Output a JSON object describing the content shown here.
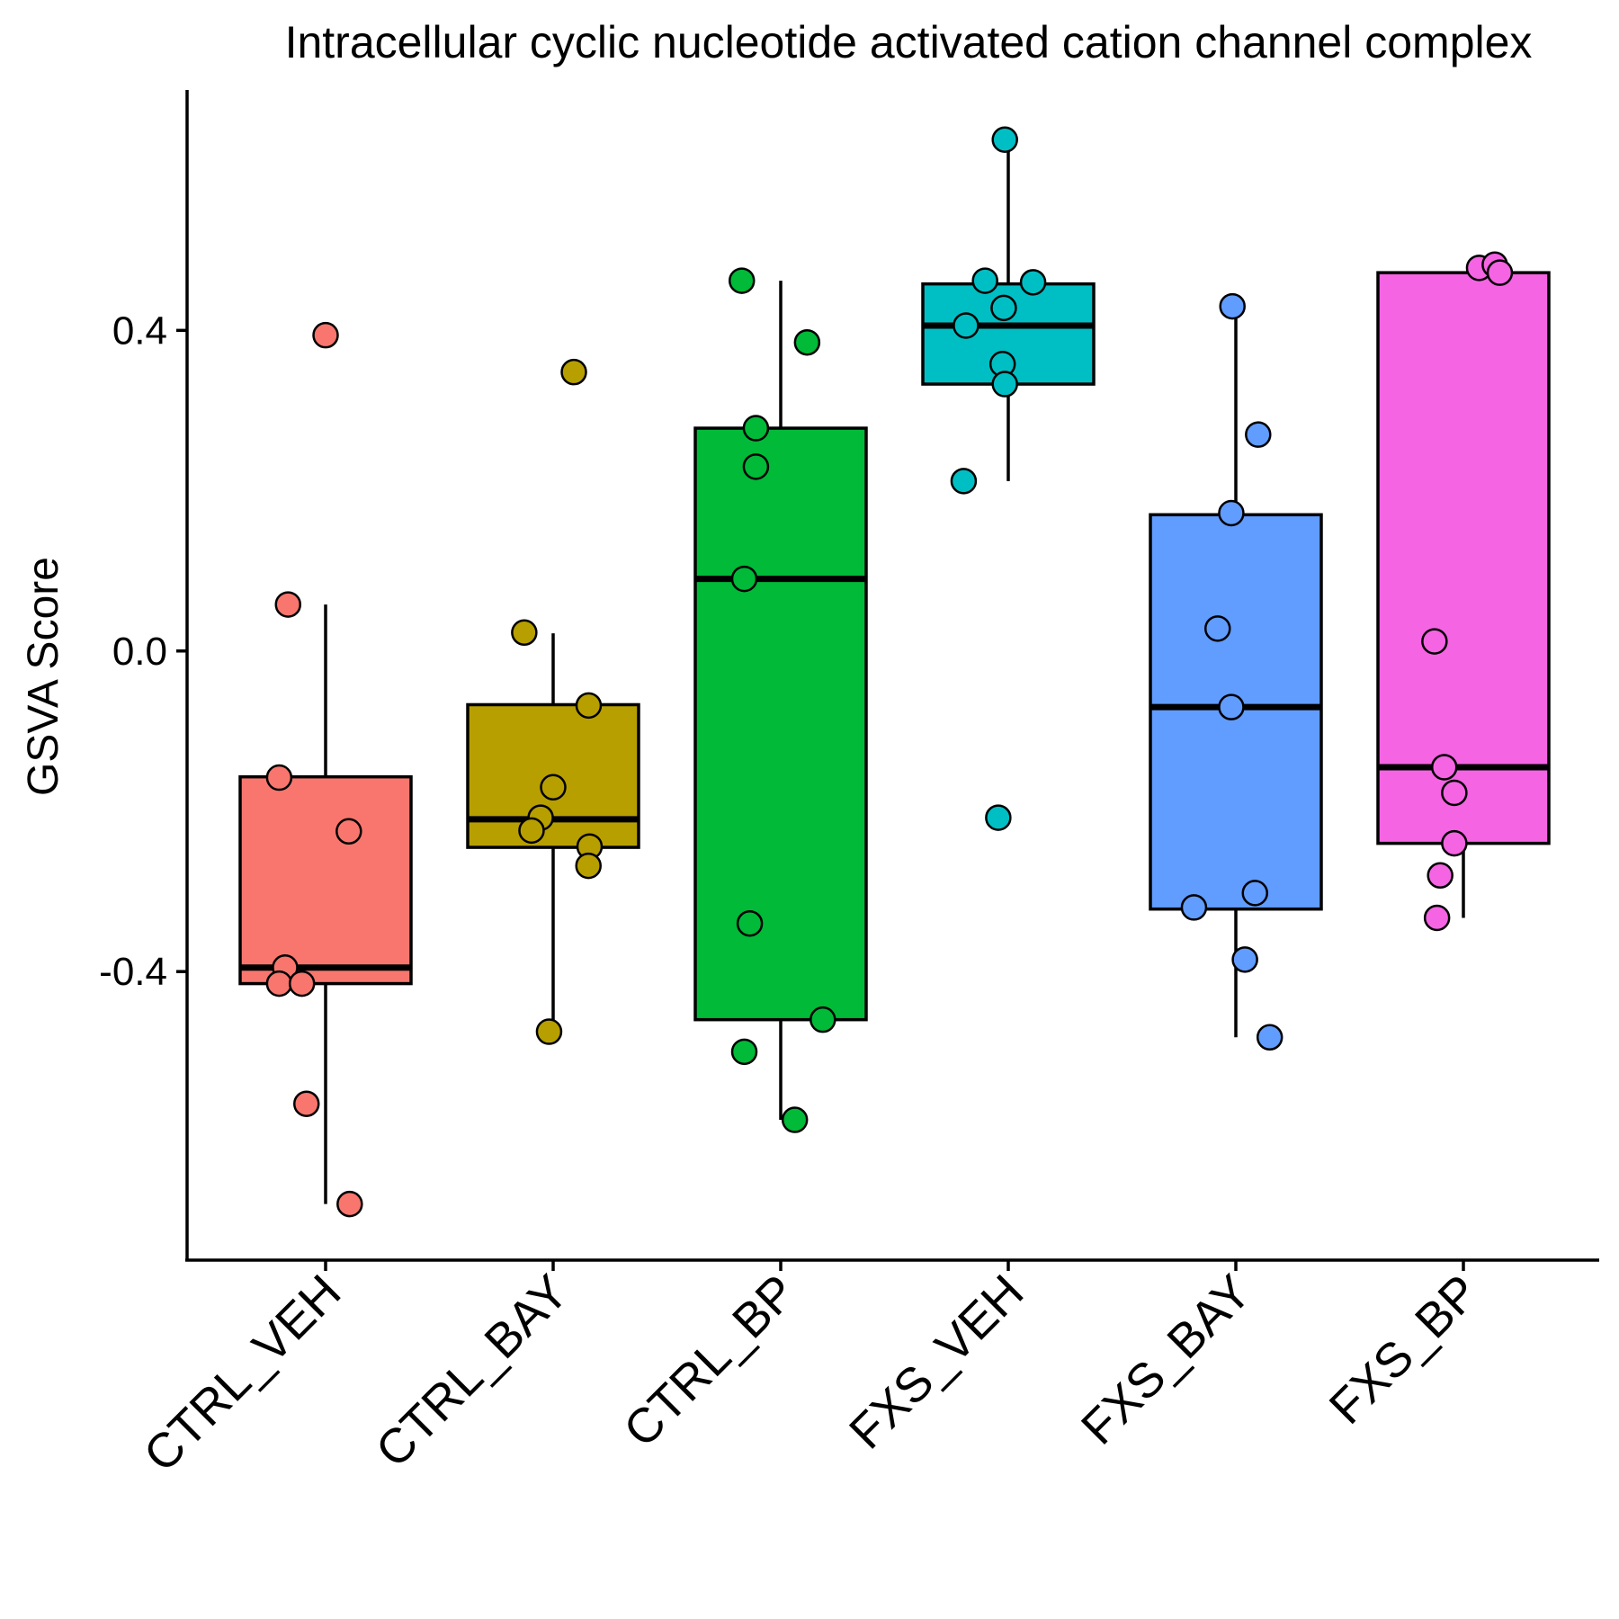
{
  "chart_data": {
    "type": "boxplot",
    "title": "Intracellular cyclic nucleotide activated cation channel complex",
    "xlabel": "",
    "ylabel": "GSVA Score",
    "ylim": [
      -0.76,
      0.7
    ],
    "y_ticks": [
      0.4,
      0.0,
      -0.4
    ],
    "y_tick_labels": [
      "0.4",
      "0.0",
      "-0.4"
    ],
    "grid": false,
    "legend": "none",
    "categories": [
      "CTRL_VEH",
      "CTRL_BAY",
      "CTRL_BP",
      "FXS_VEH",
      "FXS_BAY",
      "FXS_BP"
    ],
    "series": [
      {
        "category": "CTRL_VEH",
        "color": "#F8766D",
        "whisker_low": -0.69,
        "q1": -0.415,
        "median": -0.395,
        "q3": -0.157,
        "whisker_high": 0.058,
        "points": [
          {
            "dx": 0.0,
            "y": 0.394
          },
          {
            "dx": -0.165,
            "y": 0.058
          },
          {
            "dx": -0.204,
            "y": -0.158
          },
          {
            "dx": 0.102,
            "y": -0.225
          },
          {
            "dx": -0.178,
            "y": -0.395
          },
          {
            "dx": -0.204,
            "y": -0.415
          },
          {
            "dx": -0.104,
            "y": -0.415
          },
          {
            "dx": -0.084,
            "y": -0.565
          },
          {
            "dx": 0.106,
            "y": -0.69
          }
        ]
      },
      {
        "category": "CTRL_BAY",
        "color": "#B79F00",
        "whisker_low": -0.472,
        "q1": -0.245,
        "median": -0.21,
        "q3": -0.067,
        "whisker_high": 0.022,
        "points": [
          {
            "dx": 0.091,
            "y": 0.348
          },
          {
            "dx": -0.127,
            "y": 0.023
          },
          {
            "dx": 0.156,
            "y": -0.068
          },
          {
            "dx": 0.0,
            "y": -0.17
          },
          {
            "dx": -0.055,
            "y": -0.208
          },
          {
            "dx": -0.095,
            "y": -0.224
          },
          {
            "dx": 0.16,
            "y": -0.244
          },
          {
            "dx": 0.155,
            "y": -0.268
          },
          {
            "dx": -0.018,
            "y": -0.475
          }
        ]
      },
      {
        "category": "CTRL_BP",
        "color": "#00BA38",
        "whisker_low": -0.585,
        "q1": -0.46,
        "median": 0.09,
        "q3": 0.278,
        "whisker_high": 0.462,
        "points": [
          {
            "dx": -0.171,
            "y": 0.462
          },
          {
            "dx": 0.116,
            "y": 0.385
          },
          {
            "dx": -0.109,
            "y": 0.278
          },
          {
            "dx": -0.109,
            "y": 0.23
          },
          {
            "dx": -0.16,
            "y": 0.09
          },
          {
            "dx": -0.136,
            "y": -0.34
          },
          {
            "dx": 0.185,
            "y": -0.46
          },
          {
            "dx": -0.16,
            "y": -0.5
          },
          {
            "dx": 0.062,
            "y": -0.585
          }
        ]
      },
      {
        "category": "FXS_VEH",
        "color": "#00BFC4",
        "whisker_low": 0.212,
        "q1": 0.333,
        "median": 0.406,
        "q3": 0.458,
        "whisker_high": 0.638,
        "points": [
          {
            "dx": -0.015,
            "y": 0.638
          },
          {
            "dx": -0.102,
            "y": 0.462
          },
          {
            "dx": 0.109,
            "y": 0.46
          },
          {
            "dx": -0.02,
            "y": 0.428
          },
          {
            "dx": -0.186,
            "y": 0.406
          },
          {
            "dx": -0.025,
            "y": 0.358
          },
          {
            "dx": -0.015,
            "y": 0.333
          },
          {
            "dx": -0.196,
            "y": 0.212
          },
          {
            "dx": -0.044,
            "y": -0.208
          }
        ]
      },
      {
        "category": "FXS_BAY",
        "color": "#619CFF",
        "whisker_low": -0.482,
        "q1": -0.322,
        "median": -0.07,
        "q3": 0.17,
        "whisker_high": 0.43,
        "points": [
          {
            "dx": -0.015,
            "y": 0.43
          },
          {
            "dx": 0.098,
            "y": 0.27
          },
          {
            "dx": -0.02,
            "y": 0.172
          },
          {
            "dx": -0.08,
            "y": 0.028
          },
          {
            "dx": -0.02,
            "y": -0.07
          },
          {
            "dx": 0.084,
            "y": -0.302
          },
          {
            "dx": -0.184,
            "y": -0.32
          },
          {
            "dx": 0.04,
            "y": -0.385
          },
          {
            "dx": 0.149,
            "y": -0.482
          }
        ]
      },
      {
        "category": "FXS_BP",
        "color": "#F564E3",
        "whisker_low": -0.333,
        "q1": -0.24,
        "median": -0.145,
        "q3": 0.472,
        "whisker_high": 0.472,
        "points": [
          {
            "dx": 0.069,
            "y": 0.478
          },
          {
            "dx": 0.138,
            "y": 0.482
          },
          {
            "dx": 0.16,
            "y": 0.472
          },
          {
            "dx": -0.127,
            "y": 0.012
          },
          {
            "dx": -0.084,
            "y": -0.145
          },
          {
            "dx": -0.04,
            "y": -0.177
          },
          {
            "dx": -0.04,
            "y": -0.24
          },
          {
            "dx": -0.102,
            "y": -0.28
          },
          {
            "dx": -0.116,
            "y": -0.333
          }
        ]
      }
    ]
  }
}
